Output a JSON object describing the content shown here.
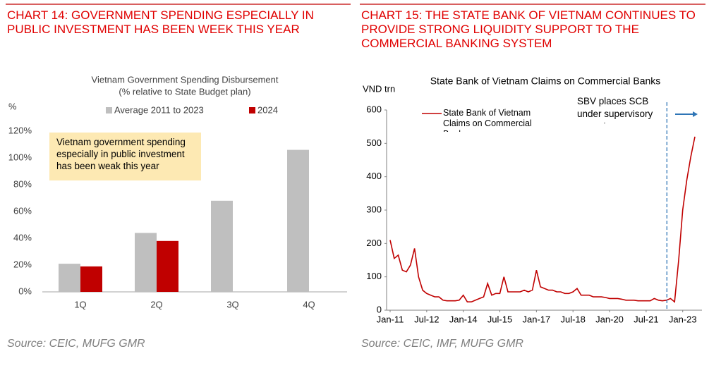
{
  "chart_data": [
    {
      "type": "bar",
      "heading": "CHART 14: GOVERNMENT SPENDING ESPECIALLY IN PUBLIC INVESTMENT HAS BEEN WEEK THIS YEAR",
      "title": "Vietnam Government Spending Disbursement",
      "subtitle": "(% relative to State Budget plan)",
      "ylabel": "%",
      "categories": [
        "1Q",
        "2Q",
        "3Q",
        "4Q"
      ],
      "series": [
        {
          "name": "Average 2011 to 2023",
          "color": "#bfbfbf",
          "values": [
            21,
            44,
            68,
            106
          ]
        },
        {
          "name": "2024",
          "color": "#c00000",
          "values": [
            19,
            38,
            null,
            null
          ]
        }
      ],
      "ylim": [
        0,
        120
      ],
      "yticks": [
        {
          "value": 0,
          "label": "0%"
        },
        {
          "value": 20,
          "label": "20%"
        },
        {
          "value": 40,
          "label": "40%"
        },
        {
          "value": 60,
          "label": "60%"
        },
        {
          "value": 80,
          "label": "80%"
        },
        {
          "value": 100,
          "label": "100%"
        },
        {
          "value": 120,
          "label": "120%"
        }
      ],
      "annotation": "Vietnam government spending especially in public investment has been weak this year",
      "source": "Source: CEIC, MUFG GMR"
    },
    {
      "type": "line",
      "heading": "CHART 15: THE STATE BANK OF VIETNAM CONTINUES TO PROVIDE STRONG LIQUIDITY SUPPORT TO THE COMMERCIAL BANKING SYSTEM",
      "title": "State Bank of Vietnam Claims on Commercial Banks",
      "ylabel": "VND trn",
      "x": [
        "Jan-11",
        "Mar-11",
        "May-11",
        "Jul-11",
        "Sep-11",
        "Nov-11",
        "Jan-12",
        "Mar-12",
        "May-12",
        "Jul-12",
        "Sep-12",
        "Nov-12",
        "Jan-13",
        "Mar-13",
        "May-13",
        "Jul-13",
        "Sep-13",
        "Nov-13",
        "Jan-14",
        "Mar-14",
        "May-14",
        "Jul-14",
        "Sep-14",
        "Nov-14",
        "Jan-15",
        "Mar-15",
        "May-15",
        "Jul-15",
        "Sep-15",
        "Nov-15",
        "Jan-16",
        "Mar-16",
        "May-16",
        "Jul-16",
        "Sep-16",
        "Nov-16",
        "Jan-17",
        "Mar-17",
        "May-17",
        "Jul-17",
        "Sep-17",
        "Nov-17",
        "Jan-18",
        "Mar-18",
        "May-18",
        "Jul-18",
        "Sep-18",
        "Nov-18",
        "Jan-19",
        "Mar-19",
        "May-19",
        "Jul-19",
        "Sep-19",
        "Nov-19",
        "Jan-20",
        "Mar-20",
        "May-20",
        "Jul-20",
        "Sep-20",
        "Nov-20",
        "Jan-21",
        "Mar-21",
        "May-21",
        "Jul-21",
        "Sep-21",
        "Nov-21",
        "Jan-22",
        "Mar-22",
        "May-22",
        "Jul-22",
        "Sep-22",
        "Nov-22",
        "Jan-23",
        "Mar-23",
        "May-23",
        "Jul-23"
      ],
      "series": [
        {
          "name": "State Bank of Vietnam Claims on Commercial Banks",
          "color": "#c00000",
          "values": [
            210,
            155,
            165,
            120,
            115,
            135,
            185,
            100,
            60,
            50,
            45,
            40,
            40,
            30,
            28,
            28,
            28,
            30,
            45,
            25,
            25,
            30,
            35,
            40,
            80,
            45,
            50,
            50,
            100,
            55,
            55,
            55,
            55,
            60,
            55,
            60,
            120,
            70,
            65,
            60,
            60,
            55,
            55,
            50,
            50,
            55,
            65,
            45,
            45,
            45,
            40,
            40,
            40,
            38,
            35,
            35,
            35,
            33,
            30,
            30,
            30,
            28,
            28,
            28,
            28,
            35,
            30,
            28,
            30,
            35,
            25,
            150,
            300,
            390,
            460,
            520
          ]
        }
      ],
      "ylim": [
        0,
        600
      ],
      "yticks": [
        0,
        100,
        200,
        300,
        400,
        500,
        600
      ],
      "xticks": [
        "Jan-11",
        "Jul-12",
        "Jan-14",
        "Jul-15",
        "Jan-17",
        "Jul-18",
        "Jan-20",
        "Jul-21",
        "Jan-23"
      ],
      "annotation": "SBV places SCB under supervisory control",
      "source": "Source: CEIC, IMF, MUFG GMR"
    }
  ]
}
